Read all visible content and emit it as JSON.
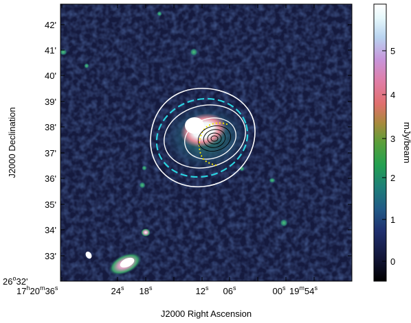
{
  "image": {
    "x_axis_title": "J2000 Right Ascension",
    "y_axis_title": "J2000 Declination",
    "colorbar_title": "mJy/beam",
    "x_ticks": [
      {
        "hms": "17h20m36s",
        "main": "17",
        "h": "h",
        "mid": "20",
        "m": "m",
        "tail": "36",
        "s": "s"
      },
      {
        "main": "24",
        "s": "s"
      },
      {
        "main": "18",
        "s": "s"
      },
      {
        "main": "12",
        "s": "s"
      },
      {
        "main": "06",
        "s": "s"
      },
      {
        "main": "00",
        "s": "s"
      },
      {
        "main": "19",
        "m": "m",
        "tail": "54",
        "s": "s"
      }
    ],
    "y_ticks": [
      "42'",
      "41'",
      "40'",
      "39'",
      "38'",
      "37'",
      "36'",
      "35'",
      "34'",
      "33'"
    ],
    "y_origin_label": {
      "deg": "26",
      "o": "o",
      "min": "32'"
    },
    "colorbar_ticks": [
      "5",
      "4",
      "3",
      "2",
      "1",
      "0"
    ],
    "colorbar_range_mJy": [
      -0.4,
      5.9
    ],
    "colormap": [
      "#000000",
      "#1a1e52",
      "#243f80",
      "#1f8a6a",
      "#2fb03a",
      "#a88a3a",
      "#e86a7a",
      "#c98ad6",
      "#d8f2f6",
      "#ffffff"
    ],
    "colors": {
      "contour_white": "#ffffff",
      "contour_black": "#000000",
      "dashed_ellipse": "#2bd3e0",
      "dotted_arc": "#f5e400"
    }
  }
}
